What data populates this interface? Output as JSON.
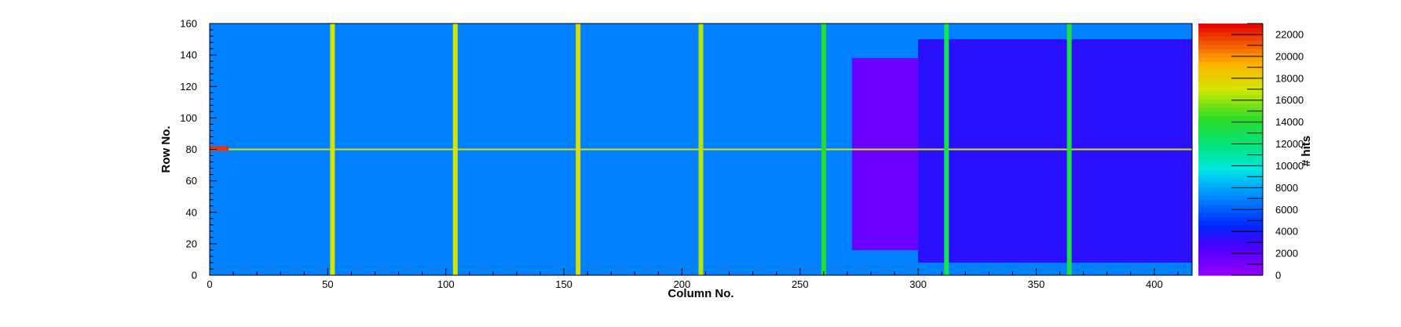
{
  "chart_data": {
    "type": "heatmap",
    "title": "",
    "xlabel": "Column No.",
    "ylabel": "Row No.",
    "zlabel": "# hits",
    "xlim": [
      0,
      416
    ],
    "ylim": [
      0,
      160
    ],
    "zlim": [
      0,
      23000
    ],
    "xticks": [
      0,
      50,
      100,
      150,
      200,
      250,
      300,
      350,
      400
    ],
    "yticks": [
      0,
      20,
      40,
      60,
      80,
      100,
      120,
      140,
      160
    ],
    "zticks": [
      0,
      2000,
      4000,
      6000,
      8000,
      10000,
      12000,
      14000,
      16000,
      18000,
      20000,
      22000
    ],
    "colormap": "rainbow (violet-blue-cyan-green-yellow-red)",
    "typical_hits": 7000,
    "features": {
      "hot_columns": [
        {
          "column": 52,
          "hits": 17000
        },
        {
          "column": 104,
          "hits": 17000
        },
        {
          "column": 156,
          "hits": 17500
        },
        {
          "column": 208,
          "hits": 16500
        },
        {
          "column": 260,
          "hits": 14000
        },
        {
          "column": 312,
          "hits": 13000
        },
        {
          "column": 364,
          "hits": 13500
        }
      ],
      "hot_row": {
        "row": 80,
        "hits": 17000,
        "columns": [
          0,
          416
        ]
      },
      "hottest_region": {
        "columns": [
          0,
          8
        ],
        "rows": [
          79,
          82
        ],
        "hits": 22000
      },
      "low_block": {
        "columns": [
          272,
          300
        ],
        "rows": [
          16,
          138
        ],
        "hits": 1500
      },
      "reduced_block": {
        "columns": [
          300,
          416
        ],
        "rows": [
          8,
          150
        ],
        "hits": 3500
      }
    }
  }
}
